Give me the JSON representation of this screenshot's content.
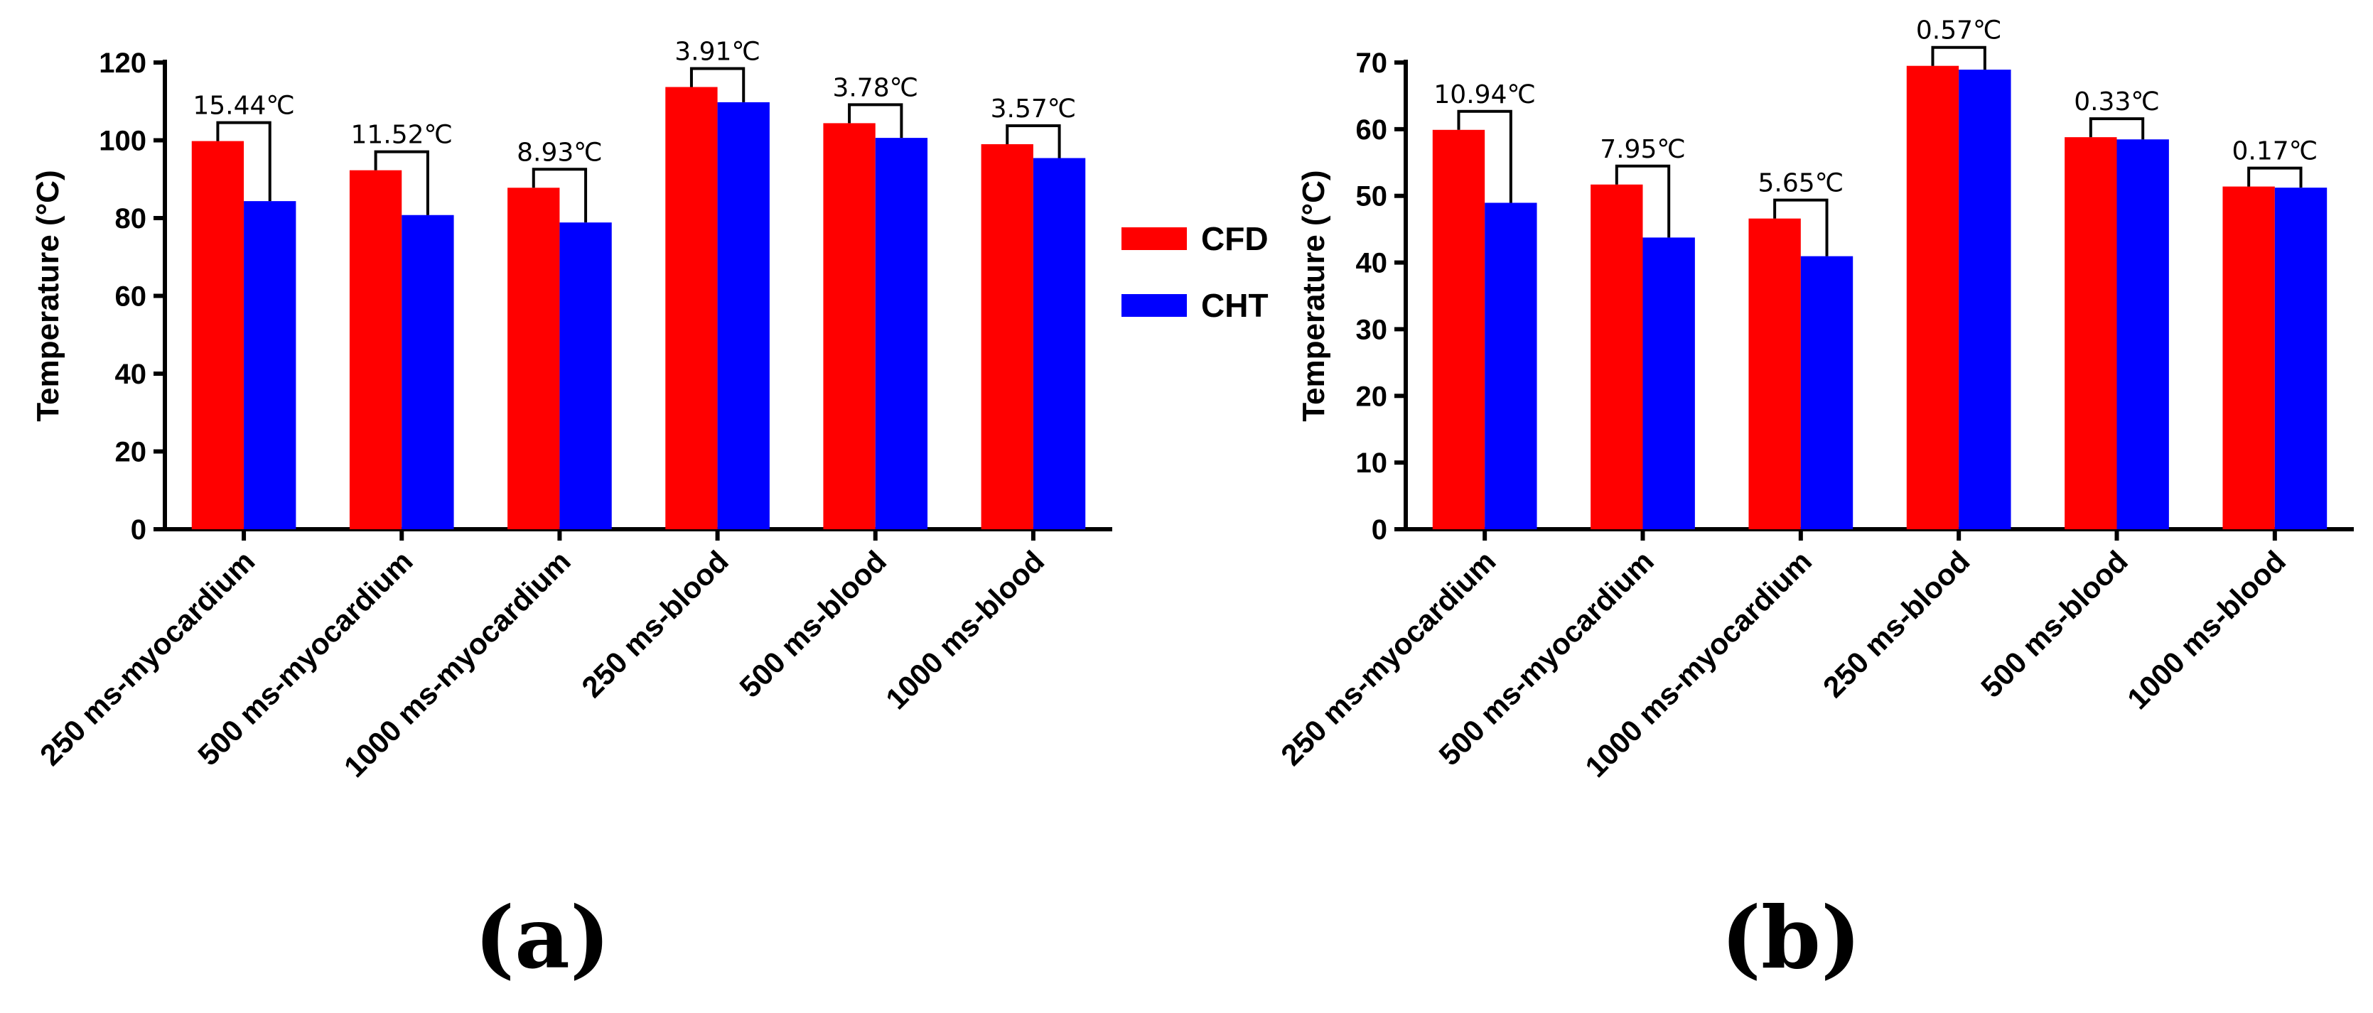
{
  "legend": {
    "items": [
      {
        "label": "CFD",
        "color": "#ff0000"
      },
      {
        "label": "CHT",
        "color": "#0000ff"
      }
    ]
  },
  "chart_data": [
    {
      "type": "bar",
      "panel_label": "(a)",
      "title": "",
      "xlabel": "",
      "ylabel": "Temperature (°C)",
      "ylim": [
        0,
        120
      ],
      "yticks": [
        0,
        20,
        40,
        60,
        80,
        100,
        120
      ],
      "ytick_labels": [
        "0",
        "20",
        "40",
        "60",
        "80",
        "100",
        "120"
      ],
      "categories": [
        "250 ms-myocardium",
        "500 ms-myocardium",
        "1000 ms-myocardium",
        "250 ms-blood",
        "500 ms-blood",
        "1000 ms-blood"
      ],
      "series": [
        {
          "name": "CFD",
          "color": "#ff0000",
          "values": [
            99.8,
            92.3,
            87.8,
            113.7,
            104.4,
            99.0
          ]
        },
        {
          "name": "CHT",
          "color": "#0000ff",
          "values": [
            84.36,
            80.78,
            78.87,
            109.79,
            100.62,
            95.43
          ]
        }
      ],
      "differences": [
        "15.44℃",
        "11.52℃",
        "8.93℃",
        "3.91℃",
        "3.78℃",
        "3.57℃"
      ],
      "grid": false,
      "legend_position": "right"
    },
    {
      "type": "bar",
      "panel_label": "(b)",
      "title": "",
      "xlabel": "",
      "ylabel": "Temperature (°C)",
      "ylim": [
        0,
        70
      ],
      "yticks": [
        0,
        10,
        20,
        30,
        40,
        50,
        60,
        70
      ],
      "ytick_labels": [
        "0",
        "10",
        "20",
        "30",
        "40",
        "50",
        "60",
        "70"
      ],
      "categories": [
        "250 ms-myocardium",
        "500 ms-myocardium",
        "1000 ms-myocardium",
        "250 ms-blood",
        "500 ms-blood",
        "1000 ms-blood"
      ],
      "series": [
        {
          "name": "CFD",
          "color": "#ff0000",
          "values": [
            59.9,
            51.7,
            46.6,
            69.5,
            58.8,
            51.4
          ]
        },
        {
          "name": "CHT",
          "color": "#0000ff",
          "values": [
            48.96,
            43.75,
            40.95,
            68.93,
            58.47,
            51.23
          ]
        }
      ],
      "differences": [
        "10.94℃",
        "7.95℃",
        "5.65℃",
        "0.57℃",
        "0.33℃",
        "0.17℃"
      ],
      "grid": false,
      "legend_position": "none"
    }
  ]
}
